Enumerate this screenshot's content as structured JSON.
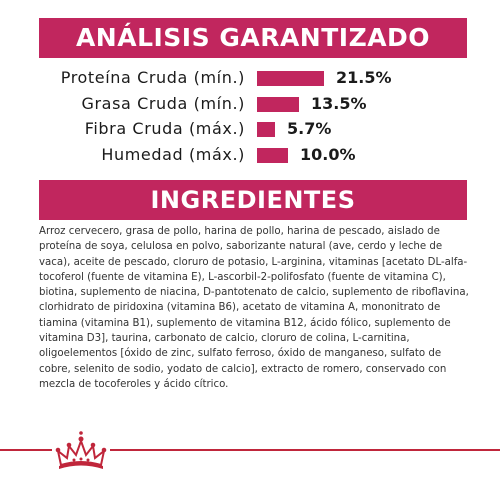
{
  "analysis": {
    "title": "ANÁLISIS GARANTIZADO",
    "rows": [
      {
        "label": "Proteína Cruda (mín.)",
        "value": "21.5%",
        "fraction": 0.215
      },
      {
        "label": "Grasa Cruda (mín.)",
        "value": "13.5%",
        "fraction": 0.135
      },
      {
        "label": "Fibra Cruda (máx.)",
        "value": "5.7%",
        "fraction": 0.057
      },
      {
        "label": "Humedad (máx.)",
        "value": "10.0%",
        "fraction": 0.1
      }
    ]
  },
  "ingredients": {
    "title": "INGREDIENTES",
    "text": "Arroz cervecero, grasa de pollo, harina de pollo, harina de pescado, aislado de proteína de soya, celulosa en polvo, saborizante natural (ave, cerdo y leche de vaca), aceite de pescado, cloruro de potasio, L-arginina, vitaminas [acetato DL-alfa-tocoferol (fuente de vitamina E), L-ascorbil-2-polifosfato (fuente de vitamina C), biotina, suplemento de niacina, D-pantotenato de calcio, suplemento de riboflavina, clorhidrato de piridoxina (vitamina B6), acetato de vitamina A, mononitrato de tiamina (vitamina B1), suplemento de vitamina B12, ácido fólico, suplemento de vitamina D3], taurina, carbonato de calcio, cloruro de colina, L-carnitina, oligoelementos [óxido de zinc, sulfato ferroso, óxido de manganeso, sulfato de cobre, selenito de sodio, yodato de calcio], extracto de romero, conservado con mezcla de tocoferoles y ácido cítrico."
  },
  "colors": {
    "accent": "#c1265e",
    "footer_line": "#c0263b"
  },
  "footer": {
    "logo_icon": "royal-canin-crown-icon"
  }
}
